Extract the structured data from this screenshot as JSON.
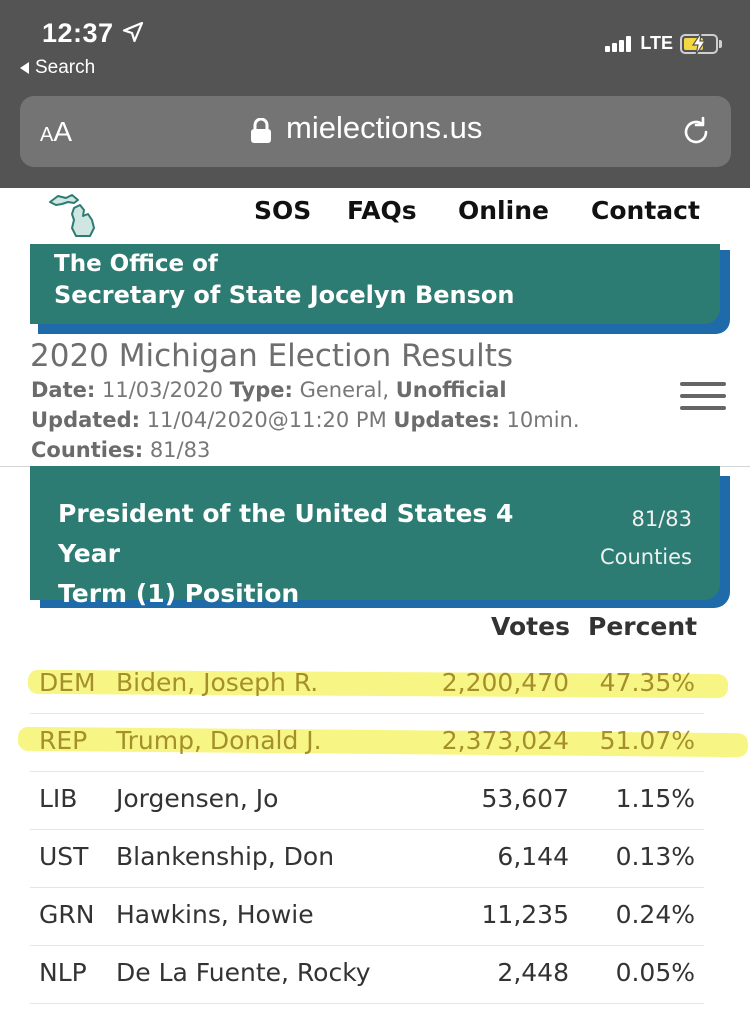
{
  "status_bar": {
    "time": "12:37",
    "back_label": "Search",
    "network": "LTE"
  },
  "browser": {
    "text_size_small": "A",
    "text_size_big": "A",
    "url": "mielections.us"
  },
  "nav": {
    "items": [
      "SOS",
      "FAQs",
      "Online",
      "Contact"
    ]
  },
  "banner": {
    "line1": "The Office of",
    "line2": "Secretary of State Jocelyn Benson"
  },
  "header": {
    "title": "2020 Michigan Election Results",
    "date_label": "Date:",
    "date_value": "11/03/2020",
    "type_label": "Type:",
    "type_value": "General,",
    "status": "Unofficial",
    "updated_label": "Updated:",
    "updated_value": "11/04/2020@11:20 PM",
    "updates_label": "Updates:",
    "updates_value": "10min.",
    "counties_label": "Counties:",
    "counties_value": "81/83"
  },
  "race": {
    "title_line1": "President of the United States 4 Year",
    "title_line2": "Term (1) Position",
    "count": "81/83",
    "count_label": "Counties"
  },
  "table": {
    "headers": {
      "votes": "Votes",
      "percent": "Percent"
    },
    "rows": [
      {
        "party": "DEM",
        "name": "Biden, Joseph R.",
        "votes": "2,200,470",
        "percent": "47.35%"
      },
      {
        "party": "REP",
        "name": "Trump, Donald J.",
        "votes": "2,373,024",
        "percent": "51.07%"
      },
      {
        "party": "LIB",
        "name": "Jorgensen, Jo",
        "votes": "53,607",
        "percent": "1.15%"
      },
      {
        "party": "UST",
        "name": "Blankenship, Don",
        "votes": "6,144",
        "percent": "0.13%"
      },
      {
        "party": "GRN",
        "name": "Hawkins, Howie",
        "votes": "11,235",
        "percent": "0.24%"
      },
      {
        "party": "NLP",
        "name": "De La Fuente, Rocky",
        "votes": "2,448",
        "percent": "0.05%"
      }
    ]
  },
  "colors": {
    "teal": "#2d7c73",
    "blue_shadow": "#1f6aa8",
    "highlighter": "#f6f57a",
    "battery_charging": "#f6d743"
  }
}
